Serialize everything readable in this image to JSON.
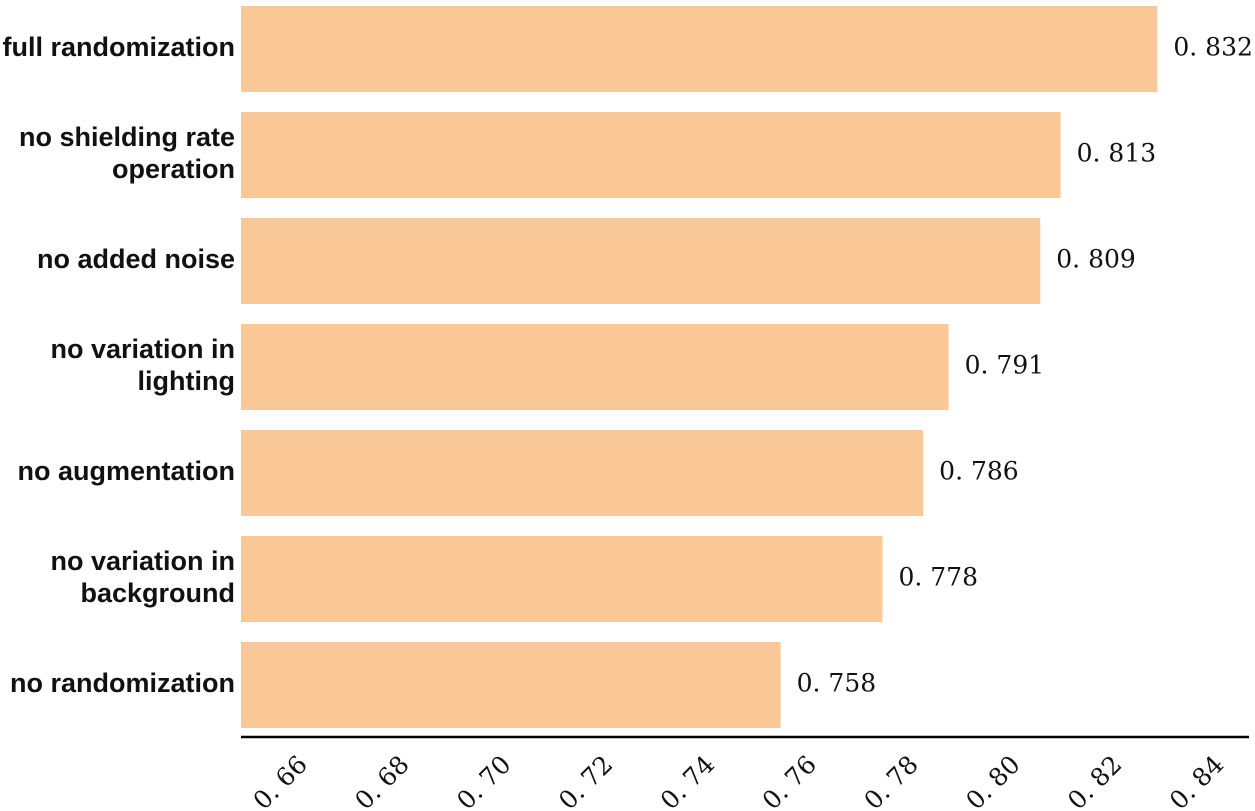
{
  "chart_data": {
    "type": "bar",
    "orientation": "horizontal",
    "title": "",
    "xlabel": "",
    "ylabel": "",
    "categories": [
      "full randomization",
      "no shielding rate operation",
      "no added noise",
      "no variation in lighting",
      "no augmentation",
      "no variation in background",
      "no randomization"
    ],
    "category_lines": [
      [
        "full randomization"
      ],
      [
        "no shielding rate",
        "operation"
      ],
      [
        "no added noise"
      ],
      [
        "no variation in",
        "lighting"
      ],
      [
        "no augmentation"
      ],
      [
        "no variation in",
        "background"
      ],
      [
        "no randomization"
      ]
    ],
    "values": [
      0.832,
      0.813,
      0.809,
      0.791,
      0.786,
      0.778,
      0.758
    ],
    "value_labels": [
      "0. 832",
      "0. 813",
      "0. 809",
      "0. 791",
      "0. 786",
      "0. 778",
      "0. 758"
    ],
    "xlim": [
      0.652,
      0.85
    ],
    "ticks": [
      0.66,
      0.68,
      0.7,
      0.72,
      0.74,
      0.76,
      0.78,
      0.8,
      0.82,
      0.84
    ],
    "tick_labels": [
      "0. 66",
      "0. 68",
      "0. 70",
      "0. 72",
      "0. 74",
      "0. 76",
      "0. 78",
      "0. 80",
      "0. 82",
      "0. 84"
    ],
    "grid": false,
    "legend": "none",
    "bar_color": "#fac896",
    "axis_color": "#000000"
  }
}
